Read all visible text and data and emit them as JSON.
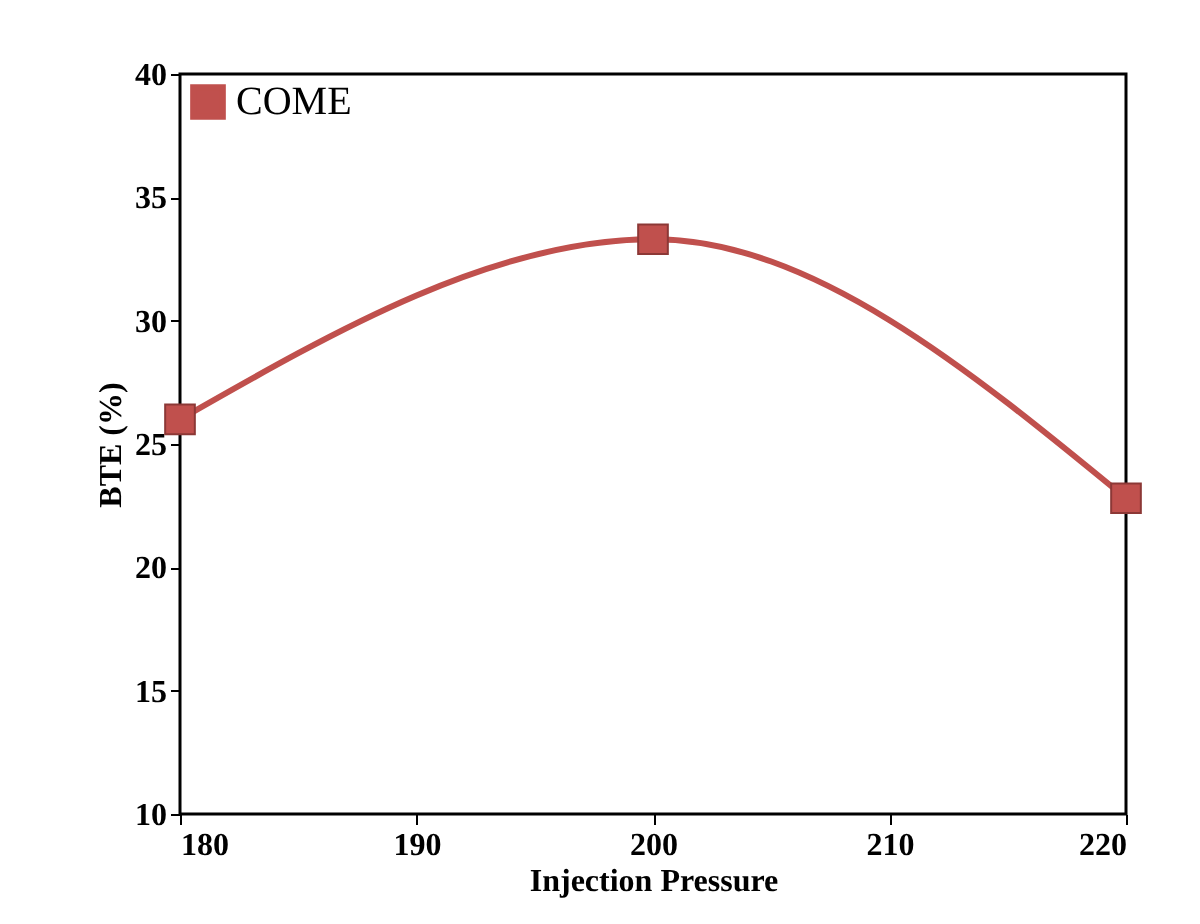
{
  "chart_data": {
    "type": "line",
    "xlabel": "Injection Pressure",
    "ylabel": "BTE (%)",
    "x": [
      180,
      200,
      220
    ],
    "series": [
      {
        "name": "COME",
        "color": "#c0504d",
        "values": [
          26.0,
          33.3,
          22.8
        ]
      }
    ],
    "xlim": [
      180,
      220
    ],
    "xticks": [
      180,
      190,
      200,
      210,
      220
    ],
    "ylim": [
      10,
      40
    ],
    "yticks": [
      10,
      15,
      20,
      25,
      30,
      35,
      40
    ],
    "grid": false,
    "legend": "top left",
    "marker": "square",
    "line_style": "solid"
  }
}
